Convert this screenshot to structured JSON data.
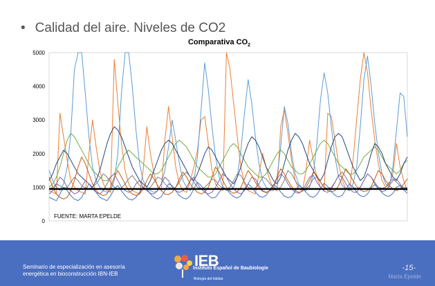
{
  "slide": {
    "bullet": "•",
    "title": "Calidad del aire. Niveles de CO2"
  },
  "chart_data": {
    "type": "line",
    "title_main": "Comparativa CO",
    "title_sub": "2",
    "source_note": "FUENTE: MARTA EPELDE",
    "ylim": [
      0,
      5000
    ],
    "yticks": [
      "0",
      "1000",
      "2000",
      "3000",
      "4000",
      "5000"
    ],
    "grid": false,
    "reference_line": {
      "y": 950,
      "color": "#000000"
    },
    "n_points": 100,
    "series": [
      {
        "color": "#ed7d31",
        "values": [
          900,
          850,
          800,
          3200,
          2500,
          1800,
          1200,
          1000,
          900,
          850,
          800,
          2000,
          3000,
          2200,
          1500,
          1100,
          900,
          850,
          4800,
          3500,
          2300,
          1500,
          1100,
          900,
          850,
          800,
          1500,
          2800,
          2000,
          1400,
          1000,
          900,
          2400,
          3400,
          2500,
          1600,
          1100,
          900,
          850,
          1200,
          1600,
          2100,
          3000,
          3100,
          2300,
          1500,
          1100,
          950,
          900,
          5000,
          4500,
          3500,
          2500,
          1600,
          1100,
          900,
          850,
          800,
          1400,
          2000,
          1600,
          1200,
          950,
          900,
          2800,
          3300,
          2600,
          1800,
          1200,
          950,
          900,
          1500,
          2400,
          1800,
          1300,
          1000,
          900,
          3200,
          3100,
          2400,
          1700,
          1200,
          950,
          900,
          1800,
          3000,
          4200,
          5000,
          4400,
          3300,
          2400,
          1700,
          1200,
          1000,
          1100,
          1400,
          2300,
          1600,
          1200,
          900
        ]
      },
      {
        "color": "#5b9bd5",
        "values": [
          1500,
          1200,
          1000,
          900,
          1100,
          1600,
          2600,
          4500,
          5000,
          5000,
          3800,
          2500,
          1600,
          1200,
          1000,
          900,
          850,
          900,
          1200,
          2000,
          3800,
          5000,
          5000,
          4000,
          2700,
          1700,
          1200,
          1000,
          900,
          850,
          900,
          1100,
          1500,
          2200,
          3000,
          2400,
          1700,
          1200,
          1000,
          900,
          1200,
          1900,
          3300,
          4700,
          3900,
          2800,
          1900,
          1300,
          1000,
          900,
          900,
          1000,
          1300,
          2100,
          3200,
          4200,
          3500,
          2500,
          1700,
          1200,
          1000,
          900,
          900,
          1300,
          2200,
          3400,
          2900,
          2000,
          1400,
          1100,
          950,
          900,
          1000,
          1400,
          2300,
          3600,
          4400,
          3800,
          2800,
          1900,
          1300,
          1050,
          950,
          900,
          1100,
          1600,
          2800,
          4200,
          4900,
          4000,
          2900,
          2000,
          1400,
          1100,
          1000,
          1600,
          2700,
          3800,
          3700,
          2500
        ]
      },
      {
        "color": "#70ad47",
        "values": [
          1000,
          1100,
          1300,
          1600,
          2000,
          2400,
          2600,
          2500,
          2300,
          2100,
          1900,
          1700,
          1500,
          1400,
          1300,
          1200,
          1200,
          1300,
          1400,
          1600,
          1800,
          2000,
          2100,
          2000,
          1900,
          1800,
          1700,
          1600,
          1500,
          1400,
          1400,
          1500,
          1700,
          1900,
          2100,
          2300,
          2400,
          2300,
          2200,
          2000,
          1800,
          1600,
          1500,
          1400,
          1300,
          1300,
          1400,
          1600,
          1800,
          2000,
          2200,
          2300,
          2200,
          2000,
          1800,
          1600,
          1500,
          1400,
          1300,
          1300,
          1400,
          1600,
          1800,
          2000,
          2100,
          2000,
          1800,
          1600,
          1500,
          1400,
          1400,
          1500,
          1700,
          1900,
          2100,
          2300,
          2400,
          2300,
          2100,
          1900,
          1700,
          1600,
          1500,
          1400,
          1400,
          1500,
          1700,
          1900,
          2000,
          2100,
          2200,
          2100,
          1900,
          1700,
          1600,
          1500,
          1400,
          1500,
          1700,
          1800
        ]
      },
      {
        "color": "#264478",
        "values": [
          1200,
          1400,
          1700,
          1900,
          2100,
          2000,
          1800,
          1600,
          1400,
          1300,
          1200,
          1100,
          1000,
          1200,
          1500,
          1900,
          2300,
          2600,
          2800,
          2700,
          2500,
          2200,
          1900,
          1600,
          1400,
          1200,
          1100,
          1000,
          1200,
          1500,
          1800,
          2100,
          2300,
          2400,
          2300,
          2100,
          1900,
          1700,
          1500,
          1300,
          1200,
          1400,
          1700,
          2000,
          2200,
          2100,
          1900,
          1700,
          1500,
          1300,
          1200,
          1100,
          1300,
          1600,
          2000,
          2300,
          2500,
          2400,
          2200,
          1900,
          1600,
          1400,
          1200,
          1100,
          1300,
          1700,
          2100,
          2400,
          2600,
          2500,
          2300,
          2000,
          1700,
          1500,
          1300,
          1200,
          1400,
          1800,
          2200,
          2500,
          2600,
          2500,
          2200,
          1900,
          1600,
          1400,
          1200,
          1300,
          1600,
          2000,
          2300,
          2200,
          2000,
          1700,
          1500,
          1300,
          1200,
          1400,
          1700,
          1900
        ]
      },
      {
        "color": "#7f7f7f",
        "values": [
          950,
          1000,
          1100,
          1050,
          980,
          1000,
          1150,
          1300,
          1200,
          1050,
          980,
          950,
          1000,
          1100,
          1250,
          1400,
          1300,
          1150,
          1000,
          950,
          980,
          1100,
          1250,
          1350,
          1200,
          1050,
          980,
          950,
          1000,
          1150,
          1300,
          1250,
          1100,
          1000,
          960,
          1000,
          1150,
          1350,
          1450,
          1300,
          1150,
          1000,
          950,
          1000,
          1100,
          1250,
          1200,
          1050,
          980,
          950,
          1000,
          1200,
          1400,
          1350,
          1150,
          1000,
          960,
          980,
          1100,
          1300,
          1250,
          1100,
          1000,
          950,
          1000,
          1200,
          1500,
          1400,
          1200,
          1050,
          980,
          950,
          1050,
          1250,
          1300,
          1150,
          1000,
          960,
          1000,
          1150,
          1350,
          1450,
          1300,
          1100,
          1000,
          960,
          1000,
          1200,
          1400,
          1300,
          1150,
          1000,
          970,
          1000,
          1150,
          1250,
          1150,
          1050,
          1000,
          980
        ]
      },
      {
        "color": "#8064a2",
        "values": [
          800,
          900,
          1100,
          1300,
          1200,
          1000,
          900,
          800,
          850,
          1000,
          1200,
          1100,
          950,
          850,
          800,
          900,
          1100,
          1300,
          1400,
          1200,
          1000,
          900,
          850,
          900,
          1100,
          1200,
          1000,
          900,
          820,
          800,
          900,
          1100,
          1300,
          1200,
          1000,
          900,
          850,
          900,
          1000,
          1200,
          1300,
          1100,
          950,
          850,
          800,
          850,
          1000,
          1200,
          1400,
          1300,
          1100,
          950,
          850,
          800,
          900,
          1100,
          1300,
          1250,
          1050,
          900,
          850,
          900,
          1050,
          1250,
          1400,
          1300,
          1100,
          950,
          850,
          820,
          900,
          1100,
          1300,
          1350,
          1150,
          1000,
          880,
          850,
          950,
          1150,
          1350,
          1300,
          1100,
          950,
          860,
          850,
          1000,
          1200,
          1400,
          1300,
          1100,
          950,
          870,
          900,
          1050,
          1200,
          1250,
          1100,
          950,
          900
        ]
      },
      {
        "color": "#4472c4",
        "values": [
          700,
          650,
          600,
          800,
          1000,
          900,
          750,
          650,
          600,
          700,
          900,
          1100,
          1000,
          850,
          700,
          650,
          600,
          750,
          950,
          1050,
          900,
          750,
          650,
          620,
          700,
          850,
          1000,
          950,
          800,
          700,
          650,
          720,
          900,
          1100,
          1050,
          900,
          750,
          680,
          650,
          750,
          950,
          1150,
          1050,
          900,
          760,
          680,
          700,
          850,
          1000,
          950,
          820,
          720,
          680,
          750,
          950,
          1100,
          1000,
          860,
          740,
          700,
          760,
          920,
          1080,
          1000,
          860,
          740,
          690,
          720,
          880,
          1050,
          980,
          850,
          740,
          700,
          780,
          960,
          1120,
          1020,
          880,
          760,
          710,
          760,
          940,
          1100,
          1000,
          860,
          750,
          720,
          800,
          980,
          1080,
          960,
          840,
          750,
          730,
          820,
          1000,
          1050,
          920,
          820
        ]
      },
      {
        "color": "#c55a11",
        "values": [
          1300,
          1000,
          800,
          700,
          650,
          700,
          900,
          1200,
          1600,
          1900,
          1700,
          1400,
          1100,
          900,
          800,
          750,
          800,
          1000,
          1300,
          1500,
          1300,
          1100,
          900,
          800,
          760,
          800,
          950,
          1200,
          1400,
          1250,
          1050,
          900,
          800,
          780,
          850,
          1000,
          1250,
          1450,
          1300,
          1100,
          950,
          850,
          800,
          850,
          1000,
          1300,
          1600,
          1450,
          1200,
          1000,
          880,
          820,
          860,
          1000,
          1250,
          1500,
          1350,
          1150,
          980,
          880,
          840,
          900,
          1050,
          1300,
          1550,
          1400,
          1200,
          1020,
          900,
          850,
          880,
          1000,
          1200,
          1450,
          1350,
          1150,
          1000,
          900,
          860,
          900,
          1050,
          1300,
          1550,
          1400,
          1200,
          1020,
          920,
          870,
          900,
          1020,
          1250,
          1500,
          1400,
          1200,
          1050,
          950,
          900,
          950,
          1100,
          1250
        ]
      }
    ]
  },
  "footer": {
    "left_line1": "Seminario de especialización en asesoría",
    "left_line2": "energética en  bioconstrucción IBN-IEB",
    "logo_text": "IEB",
    "logo_subtitle": "Instituto Español de Baubiologie",
    "logo_tagline": "Biología del hábitat",
    "page_number": "-15-",
    "author": "Marta Epelde",
    "bg_color": "#4a6ec0"
  }
}
